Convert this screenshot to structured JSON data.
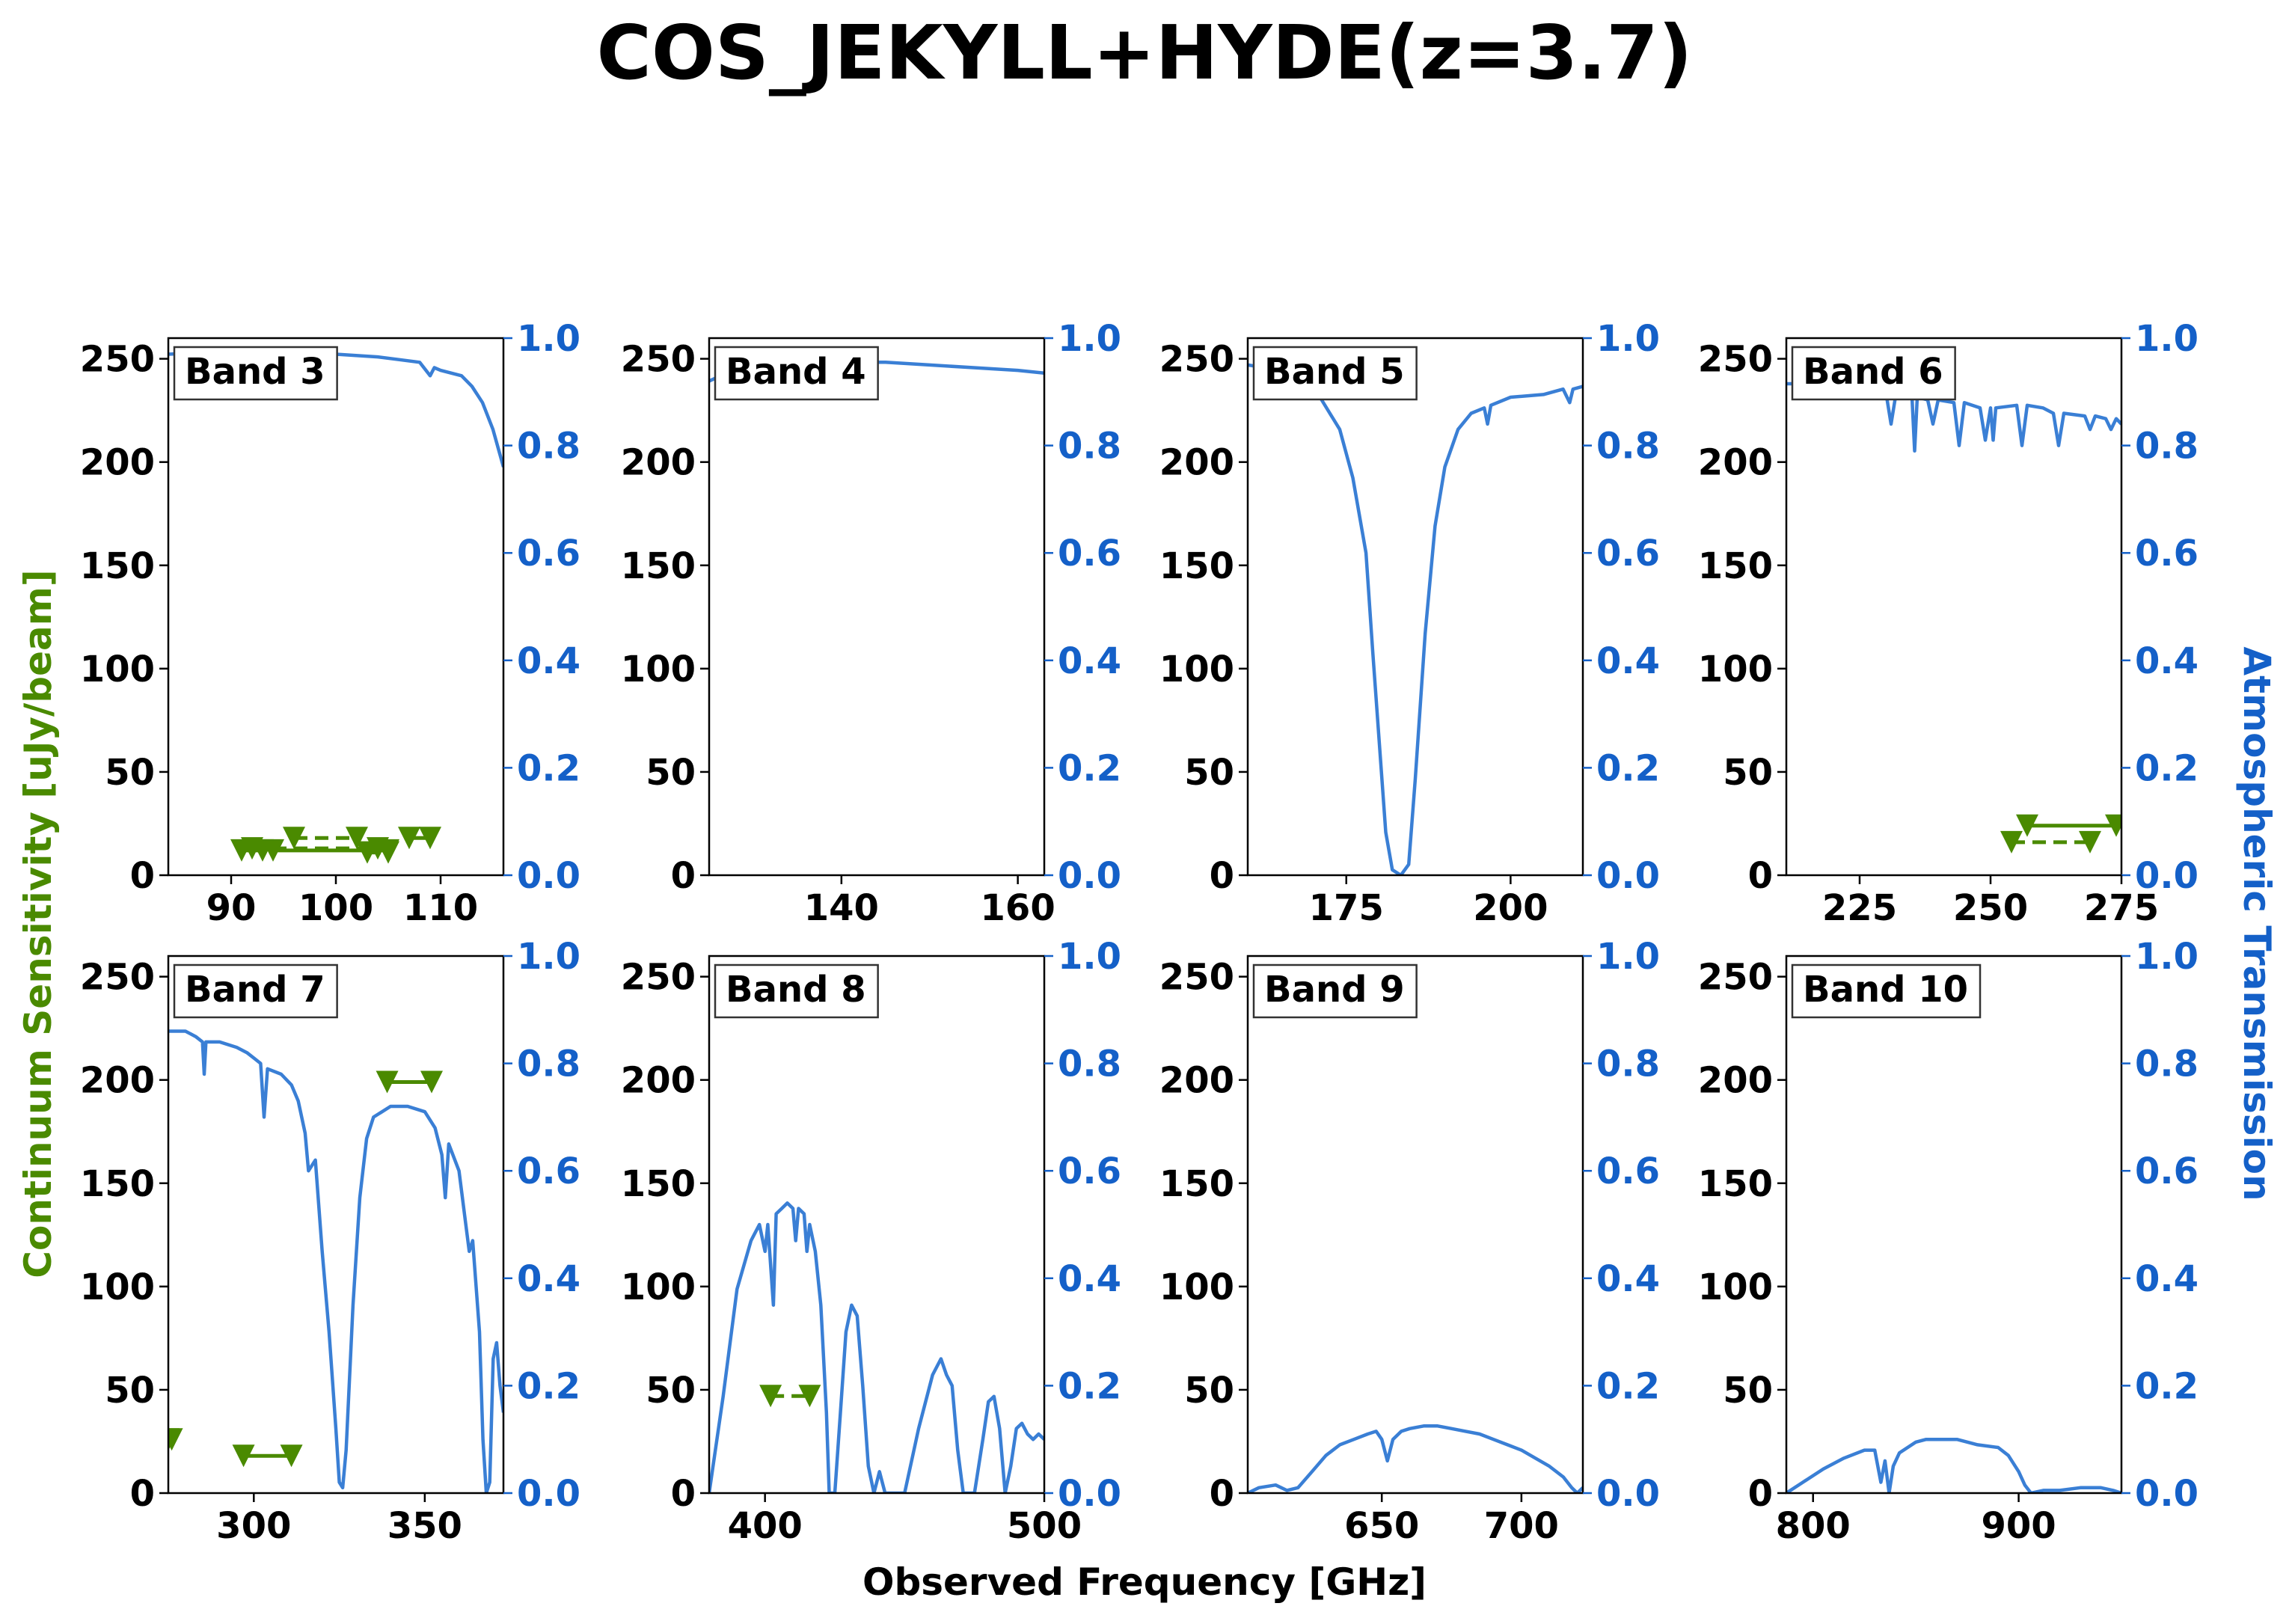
{
  "figure": {
    "title": "COS_JEKYLL+HYDE(z=3.7)",
    "xlabel": "Observed Frequency [GHz]",
    "ylabel_left": "Continuum Sensitivity [uJy/beam]",
    "ylabel_right": "Atmospheric Transmission",
    "colors": {
      "sensitivity": "#4a8a00",
      "transmission": "#3a7fd5",
      "right_axis": "#1460c8"
    }
  },
  "chart_data": [
    {
      "type": "line",
      "band": "Band 3",
      "xlim": [
        84,
        116
      ],
      "xticks": [
        90,
        100,
        110
      ],
      "ylim": [
        0,
        260
      ],
      "yticks": [
        0,
        50,
        100,
        150,
        200,
        250
      ],
      "ylim_right": [
        0,
        1
      ],
      "yticks_right": [
        "0.0",
        "0.2",
        "0.4",
        "0.6",
        "0.8",
        "1.0"
      ],
      "transmission": [
        [
          84,
          0.97
        ],
        [
          90,
          0.975
        ],
        [
          96,
          0.975
        ],
        [
          100,
          0.97
        ],
        [
          104,
          0.965
        ],
        [
          106,
          0.96
        ],
        [
          108,
          0.955
        ],
        [
          109,
          0.93
        ],
        [
          109.4,
          0.945
        ],
        [
          110,
          0.94
        ],
        [
          112,
          0.93
        ],
        [
          113,
          0.91
        ],
        [
          114,
          0.88
        ],
        [
          115,
          0.83
        ],
        [
          116,
          0.76
        ]
      ],
      "sensitivity": [
        {
          "x": [
            91,
            93
          ],
          "y": [
            12,
            12
          ],
          "style": "solid"
        },
        {
          "x": [
            92,
            104
          ],
          "y": [
            13,
            13
          ],
          "style": "dashed"
        },
        {
          "x": [
            94,
            105
          ],
          "y": [
            12,
            12
          ],
          "style": "solid"
        },
        {
          "x": [
            96,
            102
          ],
          "y": [
            18,
            18
          ],
          "style": "dashed"
        },
        {
          "x": [
            103,
            105
          ],
          "y": [
            11,
            11
          ],
          "style": "dashed"
        },
        {
          "x": [
            107,
            109
          ],
          "y": [
            18,
            18
          ],
          "style": "solid"
        }
      ]
    },
    {
      "type": "line",
      "band": "Band 4",
      "xlim": [
        125,
        163
      ],
      "xticks": [
        140,
        160
      ],
      "ylim": [
        0,
        260
      ],
      "yticks": [
        0,
        50,
        100,
        150,
        200,
        250
      ],
      "ylim_right": [
        0,
        1
      ],
      "yticks_right": [
        "0.0",
        "0.2",
        "0.4",
        "0.6",
        "0.8",
        "1.0"
      ],
      "transmission": [
        [
          125,
          0.92
        ],
        [
          127,
          0.935
        ],
        [
          130,
          0.945
        ],
        [
          135,
          0.95
        ],
        [
          140,
          0.955
        ],
        [
          145,
          0.955
        ],
        [
          150,
          0.95
        ],
        [
          155,
          0.945
        ],
        [
          160,
          0.94
        ],
        [
          163,
          0.935
        ]
      ],
      "sensitivity": []
    },
    {
      "type": "line",
      "band": "Band 5",
      "xlim": [
        160,
        211
      ],
      "xticks": [
        175,
        200
      ],
      "ylim": [
        0,
        260
      ],
      "yticks": [
        0,
        50,
        100,
        150,
        200,
        250
      ],
      "ylim_right": [
        0,
        1
      ],
      "yticks_right": [
        "0.0",
        "0.2",
        "0.4",
        "0.6",
        "0.8",
        "1.0"
      ],
      "transmission": [
        [
          160,
          0.95
        ],
        [
          165,
          0.94
        ],
        [
          168,
          0.92
        ],
        [
          171,
          0.89
        ],
        [
          174,
          0.83
        ],
        [
          176,
          0.74
        ],
        [
          178,
          0.6
        ],
        [
          179,
          0.42
        ],
        [
          180,
          0.25
        ],
        [
          181,
          0.08
        ],
        [
          182,
          0.01
        ],
        [
          183.3,
          0.0
        ],
        [
          184.5,
          0.02
        ],
        [
          185.5,
          0.18
        ],
        [
          187,
          0.45
        ],
        [
          188.5,
          0.65
        ],
        [
          190,
          0.76
        ],
        [
          192,
          0.83
        ],
        [
          194,
          0.86
        ],
        [
          196,
          0.87
        ],
        [
          196.5,
          0.84
        ],
        [
          197,
          0.875
        ],
        [
          200,
          0.89
        ],
        [
          205,
          0.895
        ],
        [
          208,
          0.905
        ],
        [
          209,
          0.88
        ],
        [
          209.5,
          0.905
        ],
        [
          211,
          0.91
        ]
      ],
      "sensitivity": []
    },
    {
      "type": "line",
      "band": "Band 6",
      "xlim": [
        211,
        275
      ],
      "xticks": [
        225,
        250,
        275
      ],
      "ylim": [
        0,
        260
      ],
      "yticks": [
        0,
        50,
        100,
        150,
        200,
        250
      ],
      "ylim_right": [
        0,
        1
      ],
      "yticks_right": [
        "0.0",
        "0.2",
        "0.4",
        "0.6",
        "0.8",
        "1.0"
      ],
      "transmission": [
        [
          211,
          0.915
        ],
        [
          215,
          0.915
        ],
        [
          220,
          0.91
        ],
        [
          225,
          0.905
        ],
        [
          230,
          0.9
        ],
        [
          231,
          0.84
        ],
        [
          232,
          0.9
        ],
        [
          235,
          0.89
        ],
        [
          235.5,
          0.79
        ],
        [
          236,
          0.89
        ],
        [
          238,
          0.885
        ],
        [
          239,
          0.84
        ],
        [
          240,
          0.885
        ],
        [
          243,
          0.88
        ],
        [
          244,
          0.8
        ],
        [
          245,
          0.88
        ],
        [
          248,
          0.87
        ],
        [
          249,
          0.81
        ],
        [
          250,
          0.87
        ],
        [
          250.5,
          0.81
        ],
        [
          251,
          0.87
        ],
        [
          255,
          0.875
        ],
        [
          256,
          0.8
        ],
        [
          257,
          0.875
        ],
        [
          260,
          0.87
        ],
        [
          262,
          0.86
        ],
        [
          263,
          0.8
        ],
        [
          264,
          0.86
        ],
        [
          268,
          0.855
        ],
        [
          269,
          0.83
        ],
        [
          270,
          0.855
        ],
        [
          272,
          0.85
        ],
        [
          273,
          0.83
        ],
        [
          274,
          0.85
        ],
        [
          275,
          0.84
        ]
      ],
      "sensitivity": [
        {
          "x": [
            254,
            269
          ],
          "y": [
            16,
            16
          ],
          "style": "dashed"
        },
        {
          "x": [
            257,
            274
          ],
          "y": [
            24,
            24
          ],
          "style": "solid"
        }
      ]
    },
    {
      "type": "line",
      "band": "Band 7",
      "xlim": [
        275,
        373
      ],
      "xticks": [
        300,
        350
      ],
      "ylim": [
        0,
        260
      ],
      "yticks": [
        0,
        50,
        100,
        150,
        200,
        250
      ],
      "ylim_right": [
        0,
        1
      ],
      "yticks_right": [
        "0.0",
        "0.2",
        "0.4",
        "0.6",
        "0.8",
        "1.0"
      ],
      "transmission": [
        [
          275,
          0.86
        ],
        [
          280,
          0.86
        ],
        [
          283,
          0.85
        ],
        [
          285,
          0.84
        ],
        [
          285.5,
          0.78
        ],
        [
          286,
          0.84
        ],
        [
          290,
          0.84
        ],
        [
          295,
          0.83
        ],
        [
          298,
          0.82
        ],
        [
          300,
          0.81
        ],
        [
          302,
          0.8
        ],
        [
          303,
          0.7
        ],
        [
          304,
          0.79
        ],
        [
          308,
          0.78
        ],
        [
          311,
          0.76
        ],
        [
          313,
          0.73
        ],
        [
          315,
          0.67
        ],
        [
          316,
          0.6
        ],
        [
          318,
          0.62
        ],
        [
          320,
          0.45
        ],
        [
          322,
          0.3
        ],
        [
          324,
          0.12
        ],
        [
          325,
          0.02
        ],
        [
          326,
          0.01
        ],
        [
          327,
          0.08
        ],
        [
          329,
          0.35
        ],
        [
          331,
          0.55
        ],
        [
          333,
          0.66
        ],
        [
          335,
          0.7
        ],
        [
          340,
          0.72
        ],
        [
          345,
          0.72
        ],
        [
          350,
          0.71
        ],
        [
          353,
          0.68
        ],
        [
          355,
          0.63
        ],
        [
          356,
          0.55
        ],
        [
          357,
          0.65
        ],
        [
          360,
          0.6
        ],
        [
          362,
          0.5
        ],
        [
          363,
          0.45
        ],
        [
          364,
          0.47
        ],
        [
          366,
          0.3
        ],
        [
          367,
          0.1
        ],
        [
          368,
          0.0
        ],
        [
          369,
          0.02
        ],
        [
          370,
          0.25
        ],
        [
          371,
          0.28
        ],
        [
          372,
          0.2
        ],
        [
          373,
          0.15
        ]
      ],
      "sensitivity": [
        {
          "x": [
            275,
            276
          ],
          "y": [
            26,
            26
          ],
          "style": "solid"
        },
        {
          "x": [
            297,
            311
          ],
          "y": [
            18,
            18
          ],
          "style": "solid"
        },
        {
          "x": [
            339,
            352
          ],
          "y": [
            199,
            199
          ],
          "style": "solid"
        }
      ]
    },
    {
      "type": "line",
      "band": "Band 8",
      "xlim": [
        380,
        500
      ],
      "xticks": [
        400,
        500
      ],
      "ylim": [
        0,
        260
      ],
      "yticks": [
        0,
        50,
        100,
        150,
        200,
        250
      ],
      "ylim_right": [
        0,
        1
      ],
      "yticks_right": [
        "0.0",
        "0.2",
        "0.4",
        "0.6",
        "0.8",
        "1.0"
      ],
      "transmission": [
        [
          380,
          0.0
        ],
        [
          385,
          0.18
        ],
        [
          390,
          0.38
        ],
        [
          395,
          0.47
        ],
        [
          398,
          0.5
        ],
        [
          400,
          0.45
        ],
        [
          401,
          0.5
        ],
        [
          403,
          0.35
        ],
        [
          404,
          0.52
        ],
        [
          406,
          0.53
        ],
        [
          408,
          0.54
        ],
        [
          410,
          0.53
        ],
        [
          411,
          0.47
        ],
        [
          412,
          0.53
        ],
        [
          414,
          0.52
        ],
        [
          415,
          0.45
        ],
        [
          416,
          0.5
        ],
        [
          418,
          0.45
        ],
        [
          420,
          0.35
        ],
        [
          422,
          0.15
        ],
        [
          423,
          0.0
        ],
        [
          425,
          0.0
        ],
        [
          427,
          0.15
        ],
        [
          429,
          0.3
        ],
        [
          431,
          0.35
        ],
        [
          433,
          0.33
        ],
        [
          435,
          0.2
        ],
        [
          437,
          0.05
        ],
        [
          439,
          0.0
        ],
        [
          441,
          0.04
        ],
        [
          443,
          0.0
        ],
        [
          450,
          0.0
        ],
        [
          455,
          0.12
        ],
        [
          460,
          0.22
        ],
        [
          463,
          0.25
        ],
        [
          465,
          0.22
        ],
        [
          467,
          0.2
        ],
        [
          469,
          0.08
        ],
        [
          471,
          0.0
        ],
        [
          475,
          0.0
        ],
        [
          478,
          0.1
        ],
        [
          480,
          0.17
        ],
        [
          482,
          0.18
        ],
        [
          484,
          0.12
        ],
        [
          486,
          0.0
        ],
        [
          488,
          0.05
        ],
        [
          490,
          0.12
        ],
        [
          492,
          0.13
        ],
        [
          494,
          0.11
        ],
        [
          496,
          0.1
        ],
        [
          498,
          0.11
        ],
        [
          500,
          0.1
        ]
      ],
      "sensitivity": [
        {
          "x": [
            402,
            416
          ],
          "y": [
            47,
            47
          ],
          "style": "dashed"
        }
      ]
    },
    {
      "type": "line",
      "band": "Band 9",
      "xlim": [
        602,
        722
      ],
      "xticks": [
        650,
        700
      ],
      "ylim": [
        0,
        260
      ],
      "yticks": [
        0,
        50,
        100,
        150,
        200,
        250
      ],
      "ylim_right": [
        0,
        1
      ],
      "yticks_right": [
        "0.0",
        "0.2",
        "0.4",
        "0.6",
        "0.8",
        "1.0"
      ],
      "transmission": [
        [
          602,
          0.0
        ],
        [
          606,
          0.01
        ],
        [
          612,
          0.015
        ],
        [
          616,
          0.005
        ],
        [
          620,
          0.01
        ],
        [
          625,
          0.04
        ],
        [
          630,
          0.07
        ],
        [
          635,
          0.09
        ],
        [
          640,
          0.1
        ],
        [
          645,
          0.11
        ],
        [
          648,
          0.115
        ],
        [
          650,
          0.1
        ],
        [
          652,
          0.06
        ],
        [
          654,
          0.1
        ],
        [
          657,
          0.115
        ],
        [
          660,
          0.12
        ],
        [
          665,
          0.125
        ],
        [
          670,
          0.125
        ],
        [
          675,
          0.12
        ],
        [
          680,
          0.115
        ],
        [
          685,
          0.11
        ],
        [
          690,
          0.1
        ],
        [
          695,
          0.09
        ],
        [
          700,
          0.08
        ],
        [
          705,
          0.065
        ],
        [
          710,
          0.05
        ],
        [
          715,
          0.03
        ],
        [
          718,
          0.01
        ],
        [
          720,
          0.0
        ],
        [
          722,
          0.01
        ]
      ],
      "sensitivity": []
    },
    {
      "type": "line",
      "band": "Band 10",
      "xlim": [
        787,
        950
      ],
      "xticks": [
        800,
        900
      ],
      "ylim": [
        0,
        260
      ],
      "yticks": [
        0,
        50,
        100,
        150,
        200,
        250
      ],
      "ylim_right": [
        0,
        1
      ],
      "yticks_right": [
        "0.0",
        "0.2",
        "0.4",
        "0.6",
        "0.8",
        "1.0"
      ],
      "transmission": [
        [
          787,
          0.0
        ],
        [
          795,
          0.02
        ],
        [
          805,
          0.045
        ],
        [
          815,
          0.065
        ],
        [
          825,
          0.08
        ],
        [
          830,
          0.08
        ],
        [
          833,
          0.02
        ],
        [
          835,
          0.06
        ],
        [
          837,
          0.0
        ],
        [
          839,
          0.05
        ],
        [
          842,
          0.075
        ],
        [
          846,
          0.085
        ],
        [
          850,
          0.095
        ],
        [
          855,
          0.1
        ],
        [
          860,
          0.1
        ],
        [
          865,
          0.1
        ],
        [
          870,
          0.1
        ],
        [
          875,
          0.095
        ],
        [
          880,
          0.09
        ],
        [
          890,
          0.085
        ],
        [
          895,
          0.07
        ],
        [
          900,
          0.04
        ],
        [
          903,
          0.015
        ],
        [
          906,
          0.0
        ],
        [
          912,
          0.005
        ],
        [
          920,
          0.005
        ],
        [
          930,
          0.01
        ],
        [
          940,
          0.01
        ],
        [
          946,
          0.005
        ],
        [
          950,
          0.0
        ]
      ],
      "sensitivity": []
    }
  ]
}
